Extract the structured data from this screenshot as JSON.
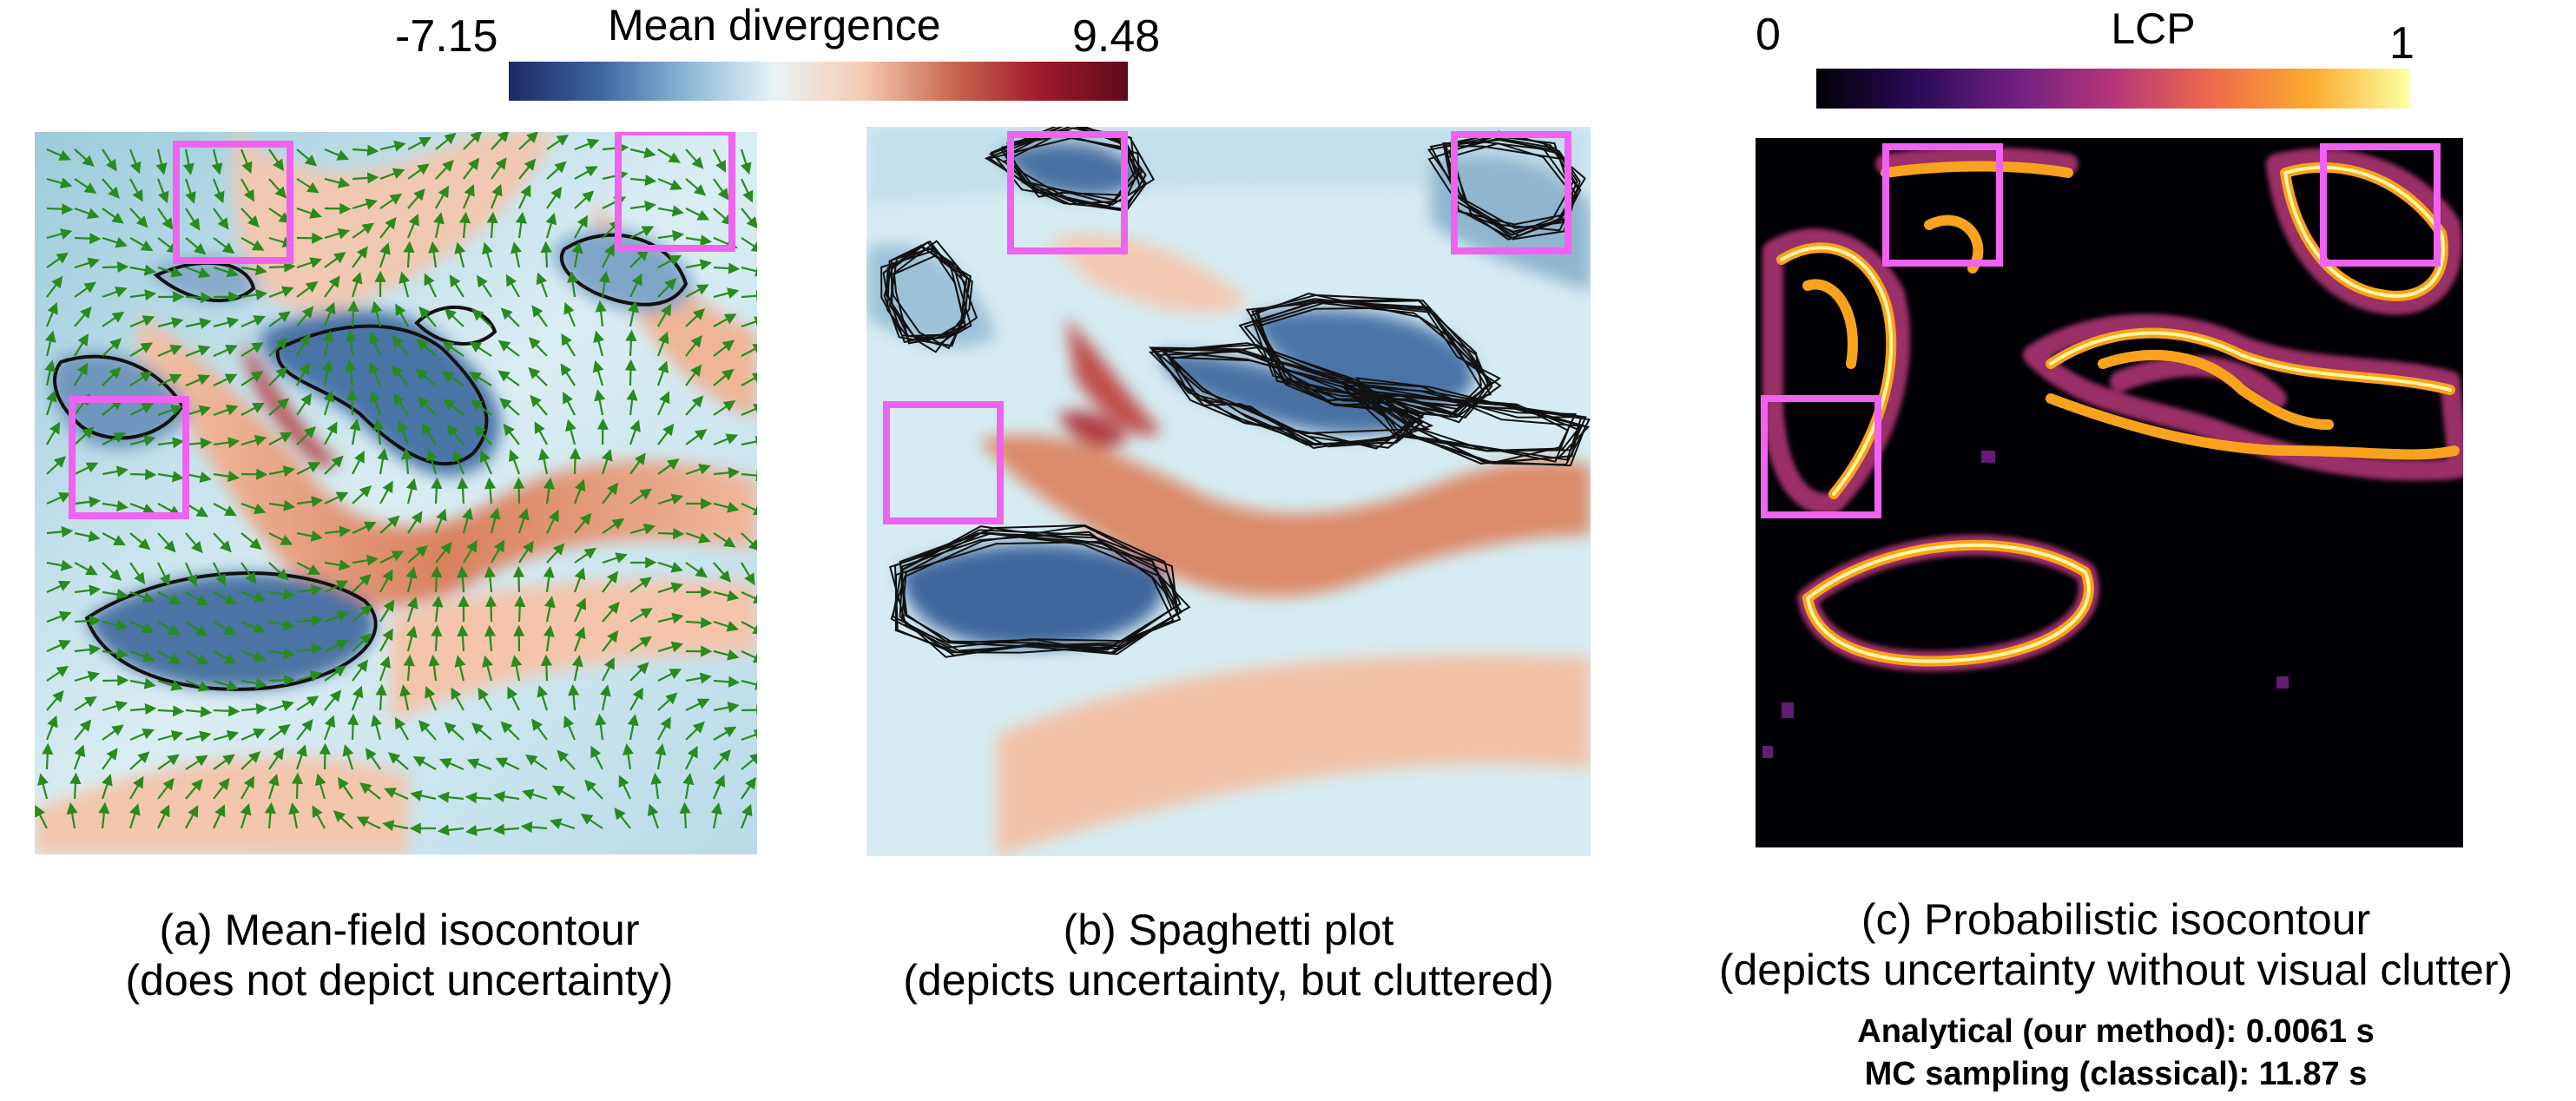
{
  "colorbars": {
    "divergence": {
      "title": "Mean divergence",
      "min": "-7.15",
      "max": "9.48",
      "colors": [
        "#1c2a60",
        "#3c63a0",
        "#8ab7d5",
        "#e8f3f6",
        "#f5cbb2",
        "#cb6a52",
        "#a01a2a",
        "#5f0a1e"
      ]
    },
    "lcp": {
      "title": "LCP",
      "min": "0",
      "max": "1",
      "colors": [
        "#000004",
        "#2a0b57",
        "#6f1f81",
        "#b63679",
        "#ee6a4b",
        "#fbaa2e",
        "#fcffa4"
      ]
    }
  },
  "panels": {
    "a": {
      "line1": "(a) Mean-field isocontour",
      "line2": "(does not depict uncertainty)"
    },
    "b": {
      "line1": "(b) Spaghetti plot",
      "line2": "(depicts uncertainty, but cluttered)"
    },
    "c": {
      "line1": "(c) Probabilistic isocontour",
      "line2": "(depicts uncertainty without visual clutter)",
      "timing1": "Analytical (our method): 0.0061 s",
      "timing2": "MC sampling (classical): 11.87 s"
    }
  },
  "colors": {
    "highlight": "#f062f0",
    "arrows": "#2a8a1e",
    "contour": "#111111"
  }
}
